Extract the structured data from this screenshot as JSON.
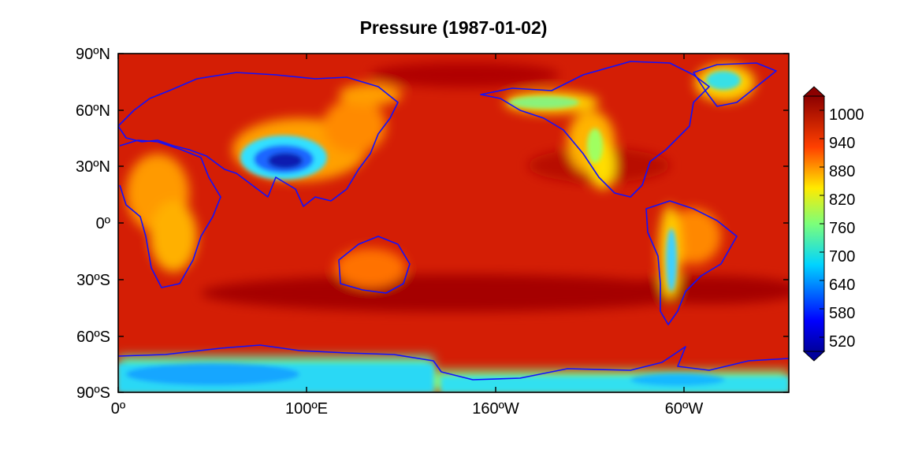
{
  "title": "Pressure (1987-01-02)",
  "chart_data": {
    "type": "heatmap",
    "title": "Pressure (1987-01-02)",
    "x_ticks": [
      "0º",
      "100ºE",
      "160ºW",
      "60ºW"
    ],
    "y_ticks": [
      "90ºN",
      "60ºN",
      "30ºN",
      "0º",
      "30ºS",
      "60ºS",
      "90ºS"
    ],
    "xlim": [
      0,
      360
    ],
    "ylim": [
      -90,
      90
    ],
    "colorbar": {
      "ticks": [
        1000,
        940,
        880,
        820,
        760,
        700,
        640,
        580,
        520
      ],
      "range": [
        490,
        1030
      ],
      "colormap": "jet",
      "extend": "both"
    },
    "coastline_color": "#1010ff",
    "features": [
      {
        "region": "open ocean",
        "value": 1010
      },
      {
        "region": "Tibetan Plateau",
        "value": 560
      },
      {
        "region": "Antarctica",
        "value": 700
      },
      {
        "region": "Greenland",
        "value": 720
      },
      {
        "region": "Rocky Mountains",
        "value": 820
      },
      {
        "region": "Andes",
        "value": 760
      },
      {
        "region": "Africa",
        "value": 900
      }
    ]
  }
}
